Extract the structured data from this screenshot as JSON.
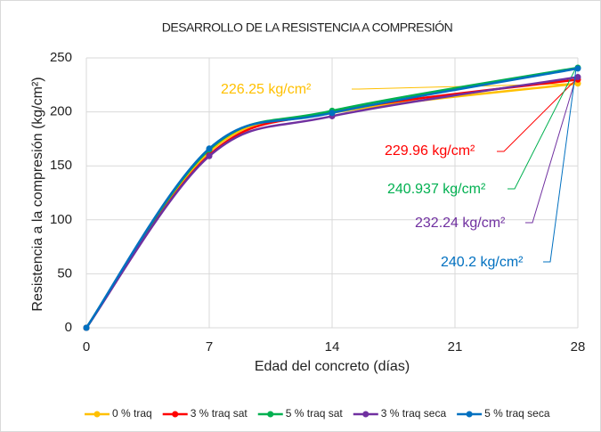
{
  "chart_data": {
    "type": "line",
    "title": "DESARROLLO DE LA RESISTENCIA A COMPRESIÓN",
    "x_label": "Edad del concreto (días)",
    "y_label": "Resistencia a la compresión (kg/cm²)",
    "x": [
      0,
      7,
      14,
      28
    ],
    "xlim": [
      0,
      28
    ],
    "xticks": [
      0,
      7,
      14,
      21,
      28
    ],
    "ylim": [
      0,
      250
    ],
    "yticks": [
      0,
      50,
      100,
      150,
      200,
      250
    ],
    "grid": true,
    "legend": "bottom",
    "series": [
      {
        "name": "0 % traq",
        "color": "#FFC000",
        "values": [
          0,
          163,
          199,
          226.25
        ],
        "value_labels": [
          null,
          null,
          null,
          "226.25 kg/cm²"
        ]
      },
      {
        "name": "3 % traq sat",
        "color": "#FF0000",
        "values": [
          0,
          160,
          200,
          229.96
        ],
        "value_labels": [
          null,
          null,
          null,
          "229.96 kg/cm²"
        ]
      },
      {
        "name": "5 % traq sat",
        "color": "#00B050",
        "values": [
          0,
          165,
          201,
          240.937
        ],
        "value_labels": [
          null,
          null,
          null,
          "240.937 kg/cm²"
        ]
      },
      {
        "name": "3 % traq seca",
        "color": "#7030A0",
        "values": [
          0,
          159,
          196,
          232.24
        ],
        "value_labels": [
          null,
          null,
          null,
          "232.24 kg/cm²"
        ]
      },
      {
        "name": "5 % traq seca",
        "color": "#0070C0",
        "values": [
          0,
          166,
          199,
          240.2
        ],
        "value_labels": [
          null,
          null,
          null,
          "240.2 kg/cm²"
        ]
      }
    ]
  }
}
